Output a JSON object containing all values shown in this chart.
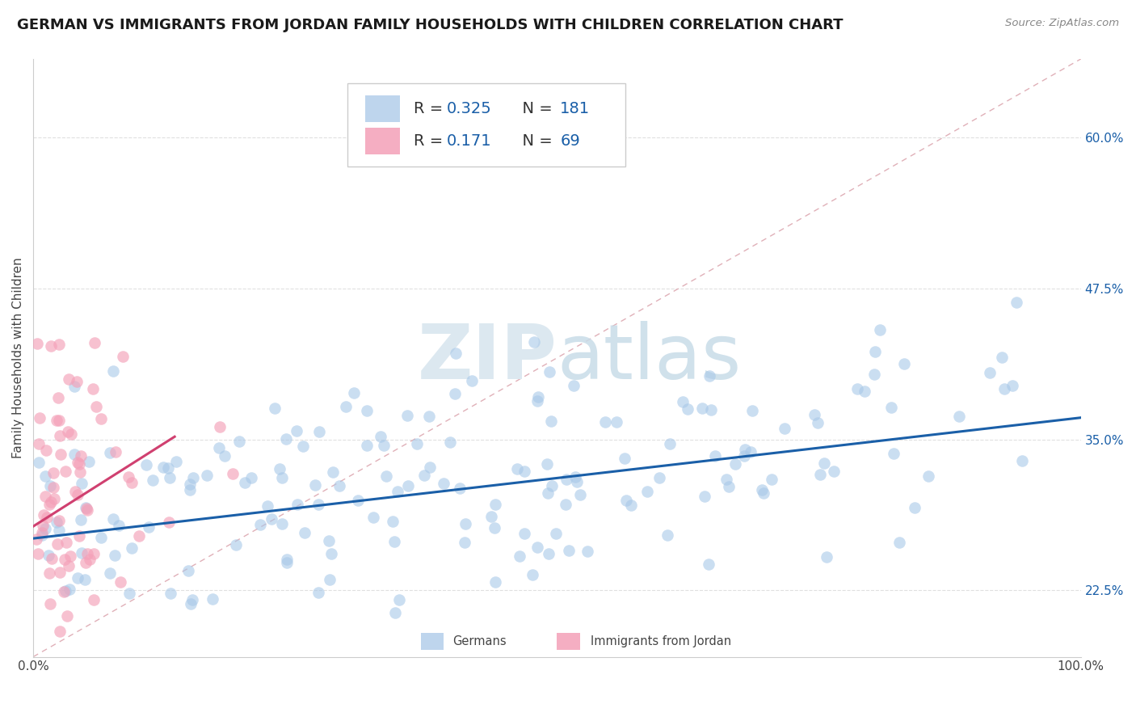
{
  "title": "GERMAN VS IMMIGRANTS FROM JORDAN FAMILY HOUSEHOLDS WITH CHILDREN CORRELATION CHART",
  "source": "Source: ZipAtlas.com",
  "ylabel": "Family Households with Children",
  "xlim": [
    0.0,
    1.0
  ],
  "ylim": [
    0.17,
    0.665
  ],
  "yticks": [
    0.225,
    0.35,
    0.475,
    0.6
  ],
  "ytick_labels": [
    "22.5%",
    "35.0%",
    "47.5%",
    "60.0%"
  ],
  "xticks": [
    0.0,
    1.0
  ],
  "xtick_labels": [
    "0.0%",
    "100.0%"
  ],
  "blue_color": "#a8c8e8",
  "pink_color": "#f4a0b8",
  "blue_line_color": "#1a5fa8",
  "pink_line_color": "#d04070",
  "ref_line_color": "#e0b0b8",
  "watermark_zip": "ZIP",
  "watermark_atlas": "atlas",
  "watermark_color": "#dce8f0",
  "title_fontsize": 13,
  "axis_label_fontsize": 11,
  "tick_fontsize": 11,
  "legend_fontsize": 14,
  "n_blue": 181,
  "n_pink": 69,
  "blue_r": 0.325,
  "pink_r": 0.171,
  "blue_slope": 0.1,
  "blue_intercept": 0.268,
  "pink_slope": 0.55,
  "pink_intercept": 0.278,
  "pink_line_end_x": 0.135,
  "seed_blue": 42,
  "seed_pink": 123,
  "background_color": "#ffffff",
  "grid_color": "#e0e0e0",
  "legend_label1": "Germans",
  "legend_label2": "Immigrants from Jordan"
}
